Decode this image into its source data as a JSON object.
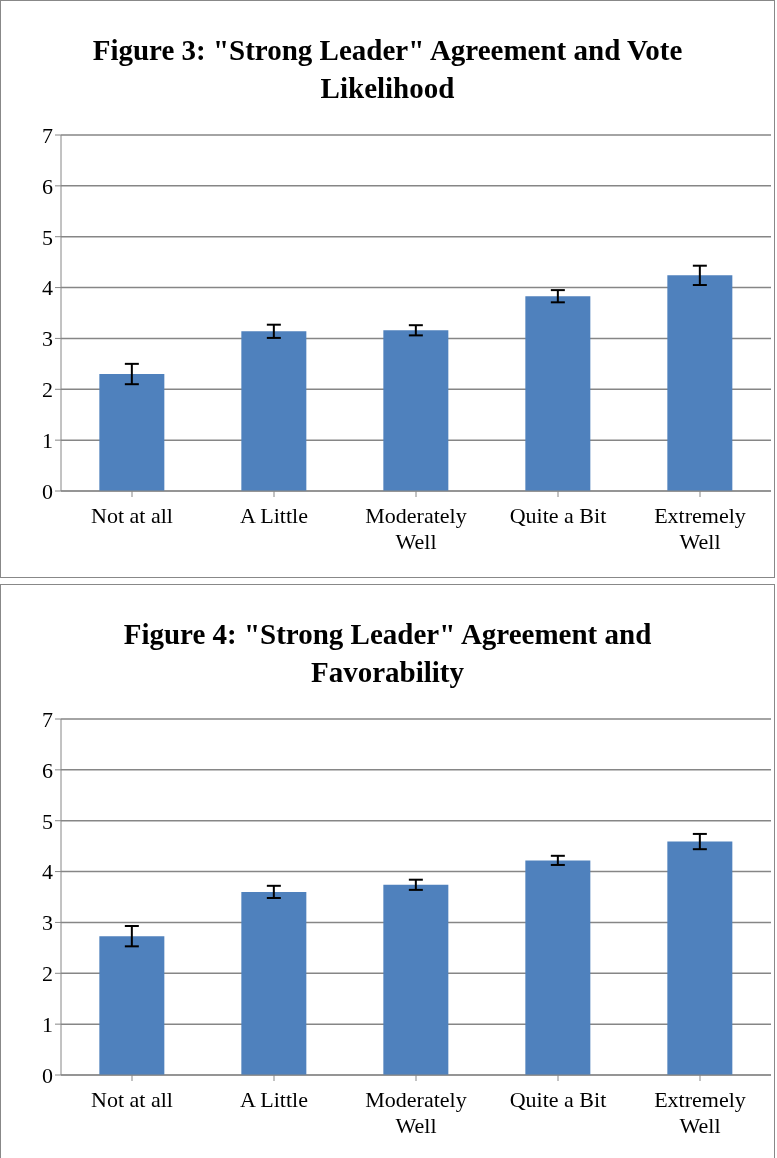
{
  "chart_data": [
    {
      "type": "bar",
      "title": "Figure 3: \"Strong Leader\" Agreement and Vote Likelihood",
      "categories": [
        "Not at all",
        "A Little",
        "Moderately Well",
        "Quite a Bit",
        "Extremely Well"
      ],
      "values": [
        2.3,
        3.14,
        3.16,
        3.83,
        4.24
      ],
      "errors": [
        0.2,
        0.13,
        0.1,
        0.12,
        0.19
      ],
      "color": "#4f81bd",
      "ylim": [
        0,
        7
      ],
      "yticks": [
        0,
        1,
        2,
        3,
        4,
        5,
        6,
        7
      ],
      "grid": "y"
    },
    {
      "type": "bar",
      "title": "Figure 4: \"Strong Leader\" Agreement and Favorability",
      "categories": [
        "Not at all",
        "A Little",
        "Moderately Well",
        "Quite a Bit",
        "Extremely Well"
      ],
      "values": [
        2.73,
        3.6,
        3.74,
        4.22,
        4.59
      ],
      "errors": [
        0.2,
        0.12,
        0.1,
        0.09,
        0.15
      ],
      "color": "#4f81bd",
      "ylim": [
        0,
        7
      ],
      "yticks": [
        0,
        1,
        2,
        3,
        4,
        5,
        6,
        7
      ],
      "grid": "y"
    }
  ]
}
